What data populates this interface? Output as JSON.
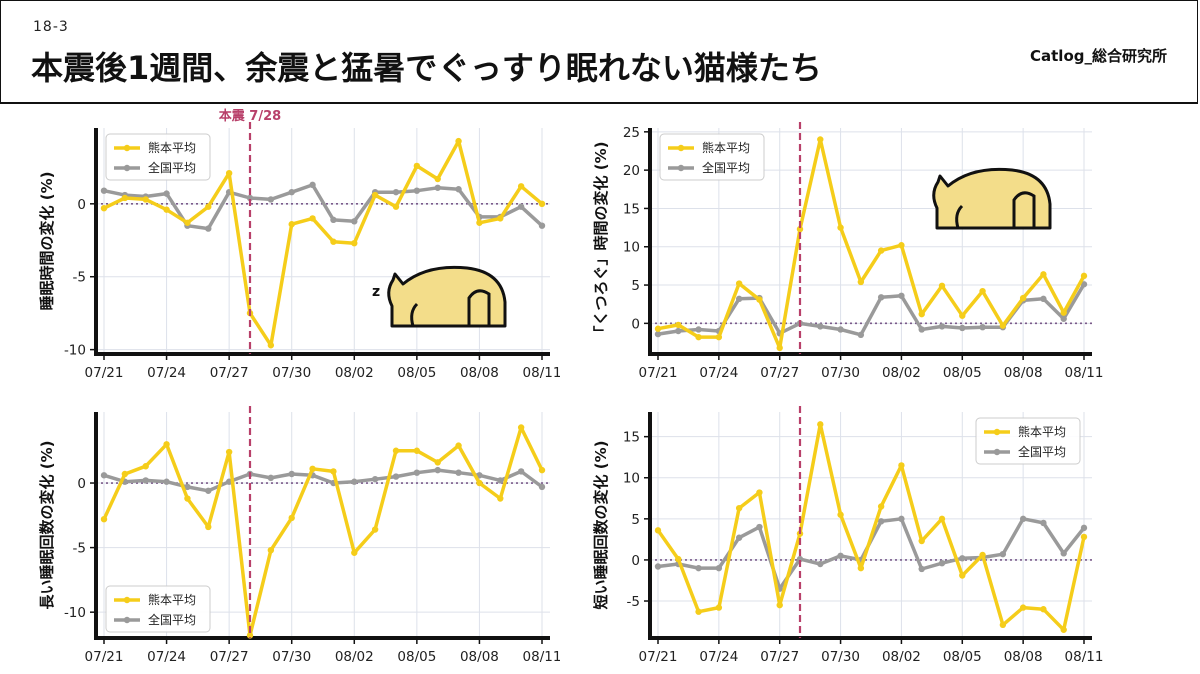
{
  "slide_number": "18-3",
  "title": "本震後1週間、余震と猛暑でぐっすり眠れない猫様たち",
  "brand": "Catlog_総合研究所",
  "colors": {
    "kumamoto": "#f5cd1a",
    "national": "#9a9a9a",
    "quake_line": "#b8406a"
  },
  "icons": {
    "chart1": "sleeping-cat-icon",
    "chart2": "resting-cat-icon"
  },
  "chart_data": [
    {
      "type": "line",
      "ylabel": "睡眠時間の変化 (%)",
      "ylim": [
        -10.3,
        5.2
      ],
      "yticks": [
        0,
        -5,
        -10
      ],
      "x_tick_labels": [
        "07/21",
        "07/24",
        "07/27",
        "07/30",
        "08/02",
        "08/05",
        "08/08",
        "08/11"
      ],
      "x_tick_index": [
        0,
        3,
        6,
        9,
        12,
        15,
        18,
        21
      ],
      "quake_index": 7,
      "quake_label": "本震 7/28",
      "legend_position": "top-left",
      "series": [
        {
          "name": "熊本平均",
          "values": [
            -0.3,
            0.4,
            0.3,
            -0.4,
            -1.3,
            -0.2,
            2.1,
            -7.5,
            -9.7,
            -1.4,
            -1.0,
            -2.6,
            -2.7,
            0.6,
            -0.2,
            2.6,
            1.7,
            4.3,
            -1.3,
            -1.0,
            1.2,
            0.0
          ]
        },
        {
          "name": "全国平均",
          "values": [
            0.9,
            0.6,
            0.5,
            0.7,
            -1.5,
            -1.7,
            0.8,
            0.4,
            0.3,
            0.8,
            1.3,
            -1.1,
            -1.2,
            0.8,
            0.8,
            0.9,
            1.1,
            1.0,
            -0.9,
            -0.9,
            -0.2,
            -1.5
          ]
        }
      ]
    },
    {
      "type": "line",
      "ylabel": "「くつろぐ」時間の変化 (%)",
      "ylim": [
        -4,
        25.5
      ],
      "yticks": [
        0,
        5,
        10,
        15,
        20,
        25
      ],
      "x_tick_labels": [
        "07/21",
        "07/24",
        "07/27",
        "07/30",
        "08/02",
        "08/05",
        "08/08",
        "08/11"
      ],
      "x_tick_index": [
        0,
        3,
        6,
        9,
        12,
        15,
        18,
        21
      ],
      "quake_index": 7,
      "legend_position": "top-left",
      "series": [
        {
          "name": "熊本平均",
          "values": [
            -0.7,
            -0.2,
            -1.8,
            -1.8,
            5.2,
            3.1,
            -3.2,
            12.3,
            24.0,
            12.5,
            5.4,
            9.5,
            10.2,
            1.2,
            4.9,
            1.0,
            4.2,
            -0.3,
            3.3,
            6.4,
            1.4,
            6.2
          ]
        },
        {
          "name": "全国平均",
          "values": [
            -1.4,
            -1.0,
            -0.8,
            -1.0,
            3.2,
            3.3,
            -1.3,
            0.0,
            -0.4,
            -0.8,
            -1.5,
            3.4,
            3.6,
            -0.8,
            -0.4,
            -0.6,
            -0.5,
            -0.5,
            3.0,
            3.2,
            0.6,
            5.1
          ]
        }
      ]
    },
    {
      "type": "line",
      "ylabel": "長い睡眠回数の変化 (%)",
      "ylim": [
        -12,
        5.5
      ],
      "yticks": [
        0,
        -5,
        -10
      ],
      "x_tick_labels": [
        "07/21",
        "07/24",
        "07/27",
        "07/30",
        "08/02",
        "08/05",
        "08/08",
        "08/11"
      ],
      "x_tick_index": [
        0,
        3,
        6,
        9,
        12,
        15,
        18,
        21
      ],
      "quake_index": 7,
      "legend_position": "bottom-left",
      "series": [
        {
          "name": "熊本平均",
          "values": [
            -2.8,
            0.7,
            1.3,
            3.0,
            -1.2,
            -3.4,
            2.4,
            -11.8,
            -5.2,
            -2.7,
            1.1,
            0.9,
            -5.4,
            -3.6,
            2.5,
            2.5,
            1.6,
            2.9,
            0.0,
            -1.2,
            4.3,
            1.0
          ]
        },
        {
          "name": "全国平均",
          "values": [
            0.6,
            0.1,
            0.2,
            0.1,
            -0.3,
            -0.6,
            0.1,
            0.7,
            0.4,
            0.7,
            0.6,
            0.0,
            0.1,
            0.3,
            0.5,
            0.8,
            1.0,
            0.8,
            0.6,
            0.2,
            0.9,
            -0.3
          ]
        }
      ]
    },
    {
      "type": "line",
      "ylabel": "短い睡眠回数の変化 (%)",
      "ylim": [
        -9.5,
        18
      ],
      "yticks": [
        -5,
        0,
        5,
        10,
        15
      ],
      "x_tick_labels": [
        "07/21",
        "07/24",
        "07/27",
        "07/30",
        "08/02",
        "08/05",
        "08/08",
        "08/11"
      ],
      "x_tick_index": [
        0,
        3,
        6,
        9,
        12,
        15,
        18,
        21
      ],
      "quake_index": 7,
      "legend_position": "top-right",
      "series": [
        {
          "name": "熊本平均",
          "values": [
            3.6,
            0.1,
            -6.3,
            -5.8,
            6.3,
            8.2,
            -5.5,
            3.2,
            16.5,
            5.5,
            -1.0,
            6.5,
            11.5,
            2.3,
            5.0,
            -1.9,
            0.6,
            -7.9,
            -5.8,
            -6.0,
            -8.5,
            2.8
          ]
        },
        {
          "name": "全国平均",
          "values": [
            -0.8,
            -0.5,
            -1.0,
            -1.0,
            2.7,
            4.0,
            -3.5,
            0.1,
            -0.5,
            0.5,
            0.0,
            4.7,
            5.0,
            -1.1,
            -0.4,
            0.2,
            0.3,
            0.7,
            5.0,
            4.5,
            0.8,
            3.9
          ]
        }
      ]
    }
  ]
}
